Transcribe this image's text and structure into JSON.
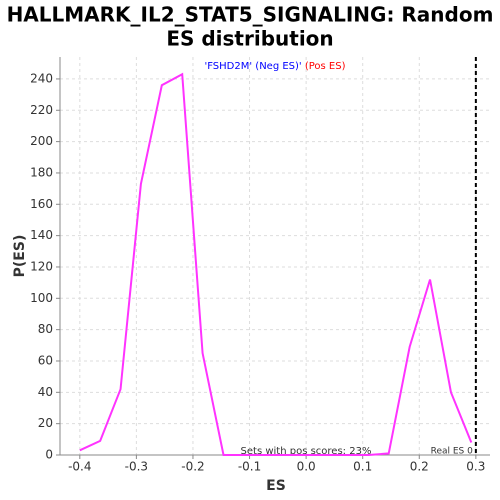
{
  "chart_data": {
    "type": "line",
    "title": "HALLMARK_IL2_STAT5_SIGNALING: Random",
    "subtitle": "ES distribution",
    "legend": [
      {
        "text": "'FSHD2M' (Neg ES)'",
        "color": "#0000ff"
      },
      {
        "text": " (Pos ES)",
        "color": "#ff0000"
      }
    ],
    "x_label": "ES",
    "y_label": "P(ES)",
    "x": [
      -0.4,
      -0.364,
      -0.328,
      -0.292,
      -0.255,
      -0.219,
      -0.183,
      -0.146,
      -0.11,
      -0.073,
      -0.037,
      0,
      0.037,
      0.073,
      0.11,
      0.146,
      0.183,
      0.219,
      0.256,
      0.292
    ],
    "series": [
      {
        "color": "#ff33ff",
        "values": [
          3,
          9,
          42,
          173,
          236,
          243,
          65,
          0,
          0,
          0,
          0,
          0,
          0,
          0,
          0,
          1,
          69,
          112,
          40,
          8
        ]
      }
    ],
    "xlim": [
      -0.435,
      0.325
    ],
    "ylim": [
      0,
      254
    ],
    "xticks": [
      -0.4,
      -0.3,
      -0.2,
      -0.1,
      {
        "value": 0,
        "label": "0.0"
      },
      0.1,
      0.2,
      0.3
    ],
    "yticks": [
      0,
      20,
      40,
      60,
      80,
      100,
      120,
      140,
      160,
      180,
      200,
      220,
      240
    ],
    "grid": true,
    "annotation": "Sets with pos scores: 23%",
    "vline": {
      "value": 0.3,
      "label": "Real ES 0"
    }
  }
}
